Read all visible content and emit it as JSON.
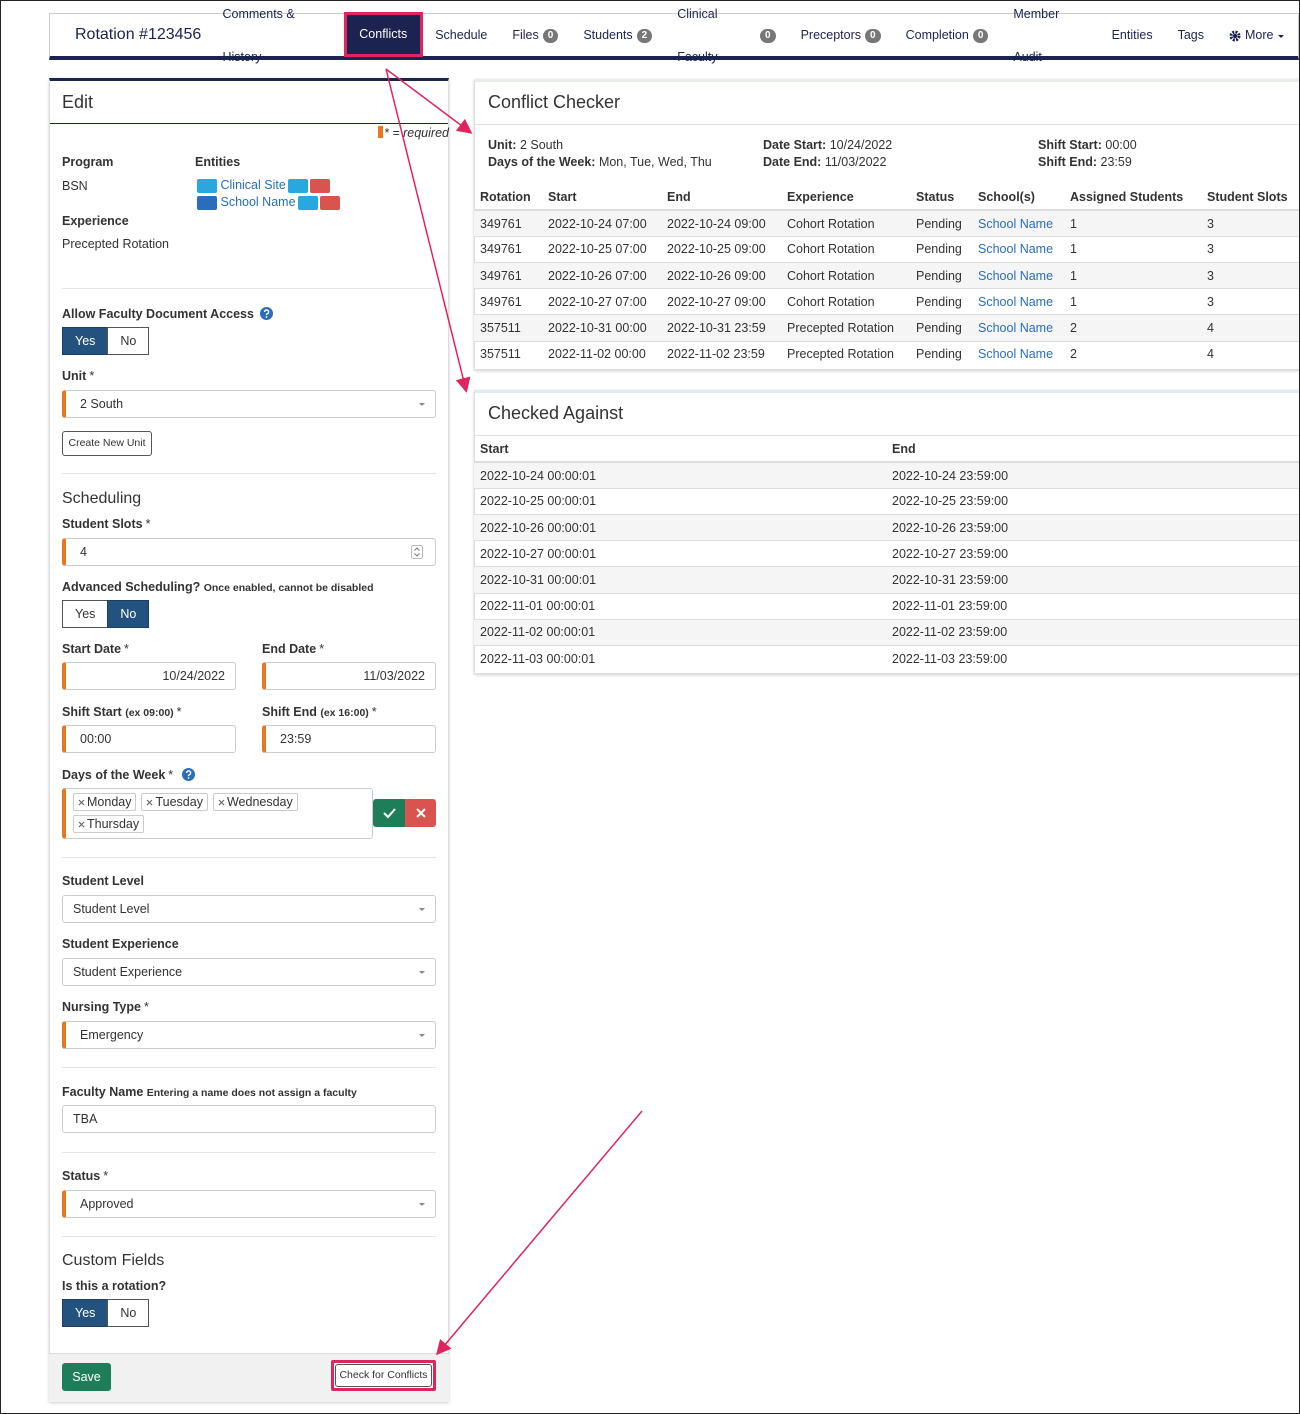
{
  "nav": {
    "title": "Rotation #123456",
    "tabs": [
      {
        "label": "Comments & History"
      },
      {
        "label": "Conflicts"
      },
      {
        "label": "Schedule"
      },
      {
        "label": "Files",
        "badge": 0
      },
      {
        "label": "Students",
        "badge": 2
      },
      {
        "label": "Clinical Faculty",
        "badge": 0
      },
      {
        "label": "Preceptors",
        "badge": 0
      },
      {
        "label": "Completion",
        "badge": 0
      },
      {
        "label": "Member Audit"
      },
      {
        "label": "Entities"
      },
      {
        "label": "Tags"
      },
      {
        "label": "More"
      }
    ]
  },
  "edit": {
    "title": "Edit",
    "required_mark": "*",
    "required_note": "* = required",
    "program": {
      "label": "Program",
      "value": "BSN"
    },
    "entities": {
      "label": "Entities",
      "items": [
        "Clinical Site",
        "School Name"
      ]
    },
    "experience": {
      "label": "Experience",
      "value": "Precepted Rotation"
    },
    "faculty_access": {
      "label": "Allow Faculty Document Access",
      "options": [
        "Yes",
        "No"
      ]
    },
    "unit": {
      "label": "Unit",
      "value": "2 South",
      "button": "Create New Unit"
    },
    "scheduling": {
      "heading": "Scheduling",
      "student_slots": {
        "label": "Student Slots",
        "value": 4
      },
      "advanced": {
        "label": "Advanced Scheduling?",
        "note": "Once enabled, cannot be disabled",
        "options": [
          "Yes",
          "No"
        ]
      },
      "start_date": {
        "label": "Start Date",
        "value": "10/24/2022"
      },
      "end_date": {
        "label": "End Date",
        "value": "11/03/2022"
      },
      "shift_start": {
        "label": "Shift Start",
        "hint": "(ex 09:00)",
        "value": "00:00"
      },
      "shift_end": {
        "label": "Shift End",
        "hint": "(ex 16:00)",
        "value": "23:59"
      },
      "days": {
        "label": "Days of the Week",
        "values": [
          "Monday",
          "Tuesday",
          "Wednesday",
          "Thursday"
        ]
      }
    },
    "student_level": {
      "label": "Student Level",
      "placeholder": "Student Level"
    },
    "student_experience": {
      "label": "Student Experience",
      "placeholder": "Student Experience"
    },
    "nursing_type": {
      "label": "Nursing Type",
      "value": "Emergency"
    },
    "faculty_name": {
      "label": "Faculty Name",
      "note": "Entering a name does not assign a faculty",
      "value": "TBA"
    },
    "status": {
      "label": "Status",
      "value": "Approved"
    },
    "custom_fields": {
      "heading": "Custom Fields",
      "is_rotation": {
        "label": "Is this a rotation?",
        "options": [
          "Yes",
          "No"
        ]
      }
    },
    "save": "Save",
    "check": "Check for Conflicts"
  },
  "conflict_checker": {
    "title": "Conflict Checker",
    "summary": [
      {
        "label": "Unit:",
        "value": "2 South"
      },
      {
        "label": "Days of the Week:",
        "value": "Mon, Tue, Wed, Thu"
      },
      {
        "label": "Date Start:",
        "value": "10/24/2022"
      },
      {
        "label": "Date End:",
        "value": "11/03/2022"
      },
      {
        "label": "Shift Start:",
        "value": "00:00"
      },
      {
        "label": "Shift End:",
        "value": "23:59"
      }
    ],
    "columns": [
      "Rotation",
      "Start",
      "End",
      "Experience",
      "Status",
      "School(s)",
      "Assigned Students",
      "Student Slots"
    ],
    "rows": [
      [
        349761,
        "2022-10-24 07:00",
        "2022-10-24 09:00",
        "Cohort Rotation",
        "Pending",
        "School Name",
        1,
        3
      ],
      [
        349761,
        "2022-10-25 07:00",
        "2022-10-25 09:00",
        "Cohort Rotation",
        "Pending",
        "School Name",
        1,
        3
      ],
      [
        349761,
        "2022-10-26 07:00",
        "2022-10-26 09:00",
        "Cohort Rotation",
        "Pending",
        "School Name",
        1,
        3
      ],
      [
        349761,
        "2022-10-27 07:00",
        "2022-10-27 09:00",
        "Cohort Rotation",
        "Pending",
        "School Name",
        1,
        3
      ],
      [
        357511,
        "2022-10-31 00:00",
        "2022-10-31 23:59",
        "Precepted Rotation",
        "Pending",
        "School Name",
        2,
        4
      ],
      [
        357511,
        "2022-11-02 00:00",
        "2022-11-02 23:59",
        "Precepted Rotation",
        "Pending",
        "School Name",
        2,
        4
      ]
    ]
  },
  "checked_against": {
    "title": "Checked Against",
    "columns": [
      "Start",
      "End"
    ],
    "rows": [
      [
        "2022-10-24 00:00:01",
        "2022-10-24 23:59:00"
      ],
      [
        "2022-10-25 00:00:01",
        "2022-10-25 23:59:00"
      ],
      [
        "2022-10-26 00:00:01",
        "2022-10-26 23:59:00"
      ],
      [
        "2022-10-27 00:00:01",
        "2022-10-27 23:59:00"
      ],
      [
        "2022-10-31 00:00:01",
        "2022-10-31 23:59:00"
      ],
      [
        "2022-11-01 00:00:01",
        "2022-11-01 23:59:00"
      ],
      [
        "2022-11-02 00:00:01",
        "2022-11-02 23:59:00"
      ],
      [
        "2022-11-03 00:00:01",
        "2022-11-03 23:59:00"
      ]
    ]
  }
}
